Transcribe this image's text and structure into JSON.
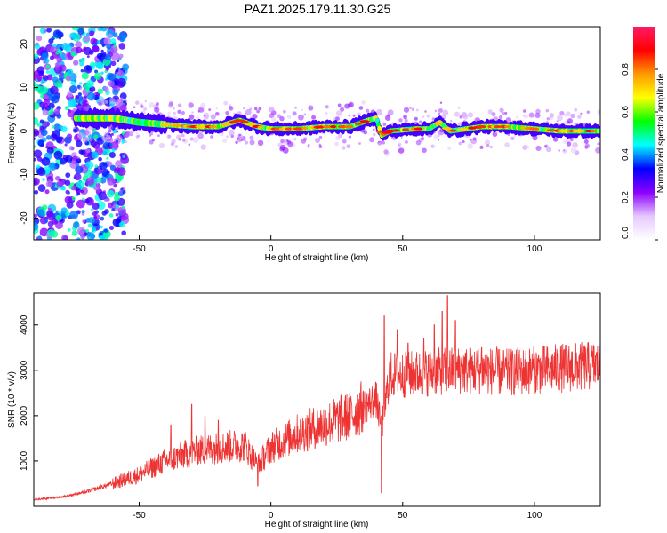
{
  "title": "PAZ1.2025.179.11.30.G25",
  "chart_data": [
    {
      "type": "heatmap",
      "xlabel": "Height of straight line (km)",
      "ylabel": "Frequency (Hz)",
      "xlim": [
        -90,
        125
      ],
      "ylim": [
        -25,
        24
      ],
      "x_ticks": [
        "-50",
        "0",
        "50",
        "100"
      ],
      "y_ticks": [
        "20",
        "10",
        "0",
        "-10",
        "-20"
      ],
      "grid": false,
      "colorbar": {
        "label": "Normalized spectral amplitude",
        "range": [
          0,
          1
        ],
        "ticks": [
          "0.0",
          "0.2",
          "0.4",
          "0.6",
          "0.8"
        ],
        "colors": [
          "#ffffff",
          "#e6c8ff",
          "#8c00ff",
          "#0000ff",
          "#00ffff",
          "#00ff00",
          "#ffff00",
          "#ff9900",
          "#ff0000",
          "#ff1a66"
        ]
      },
      "band": {
        "center_freq_hz": [
          [
            -73,
            3
          ],
          [
            -60,
            3
          ],
          [
            -50,
            2
          ],
          [
            -40,
            1.5
          ],
          [
            -30,
            1
          ],
          [
            -20,
            1
          ],
          [
            -12,
            2.5
          ],
          [
            -5,
            1
          ],
          [
            0,
            0.5
          ],
          [
            10,
            0.5
          ],
          [
            20,
            1
          ],
          [
            30,
            1
          ],
          [
            37,
            2.5
          ],
          [
            40,
            3
          ],
          [
            42,
            -1
          ],
          [
            45,
            0
          ],
          [
            55,
            0.5
          ],
          [
            60,
            0.5
          ],
          [
            64,
            2
          ],
          [
            68,
            0
          ],
          [
            80,
            1
          ],
          [
            90,
            1
          ],
          [
            100,
            0.5
          ],
          [
            110,
            0
          ],
          [
            125,
            0
          ]
        ],
        "peak_amplitude": 0.9
      }
    },
    {
      "type": "line",
      "xlabel": "Height of straight line (km)",
      "ylabel": "SNR (10 * v/v)",
      "xlim": [
        -90,
        125
      ],
      "ylim": [
        0,
        4700
      ],
      "x_ticks": [
        "-50",
        "0",
        "50",
        "100"
      ],
      "y_ticks": [
        "1000",
        "2000",
        "3000",
        "4000"
      ],
      "grid": false,
      "color": "#ee3333",
      "trend": [
        [
          -90,
          150
        ],
        [
          -80,
          200
        ],
        [
          -70,
          320
        ],
        [
          -60,
          500
        ],
        [
          -50,
          700
        ],
        [
          -40,
          1000
        ],
        [
          -30,
          1200
        ],
        [
          -20,
          1300
        ],
        [
          -10,
          1350
        ],
        [
          -5,
          900
        ],
        [
          0,
          1300
        ],
        [
          10,
          1600
        ],
        [
          20,
          1800
        ],
        [
          30,
          2000
        ],
        [
          35,
          2200
        ],
        [
          40,
          2350
        ],
        [
          42,
          1700
        ],
        [
          45,
          2900
        ],
        [
          50,
          2900
        ],
        [
          60,
          2950
        ],
        [
          70,
          3000
        ],
        [
          80,
          3000
        ],
        [
          90,
          2950
        ],
        [
          100,
          3000
        ],
        [
          110,
          3050
        ],
        [
          125,
          3100
        ]
      ],
      "spikes": [
        [
          -38,
          1800
        ],
        [
          -30,
          2250
        ],
        [
          -25,
          2000
        ],
        [
          -20,
          1900
        ],
        [
          -5,
          450
        ],
        [
          42,
          300
        ],
        [
          43,
          4200
        ],
        [
          48,
          3900
        ],
        [
          52,
          3600
        ],
        [
          58,
          3700
        ],
        [
          62,
          4000
        ],
        [
          65,
          4300
        ],
        [
          67,
          4650
        ],
        [
          70,
          4100
        ],
        [
          80,
          3500
        ]
      ]
    }
  ]
}
